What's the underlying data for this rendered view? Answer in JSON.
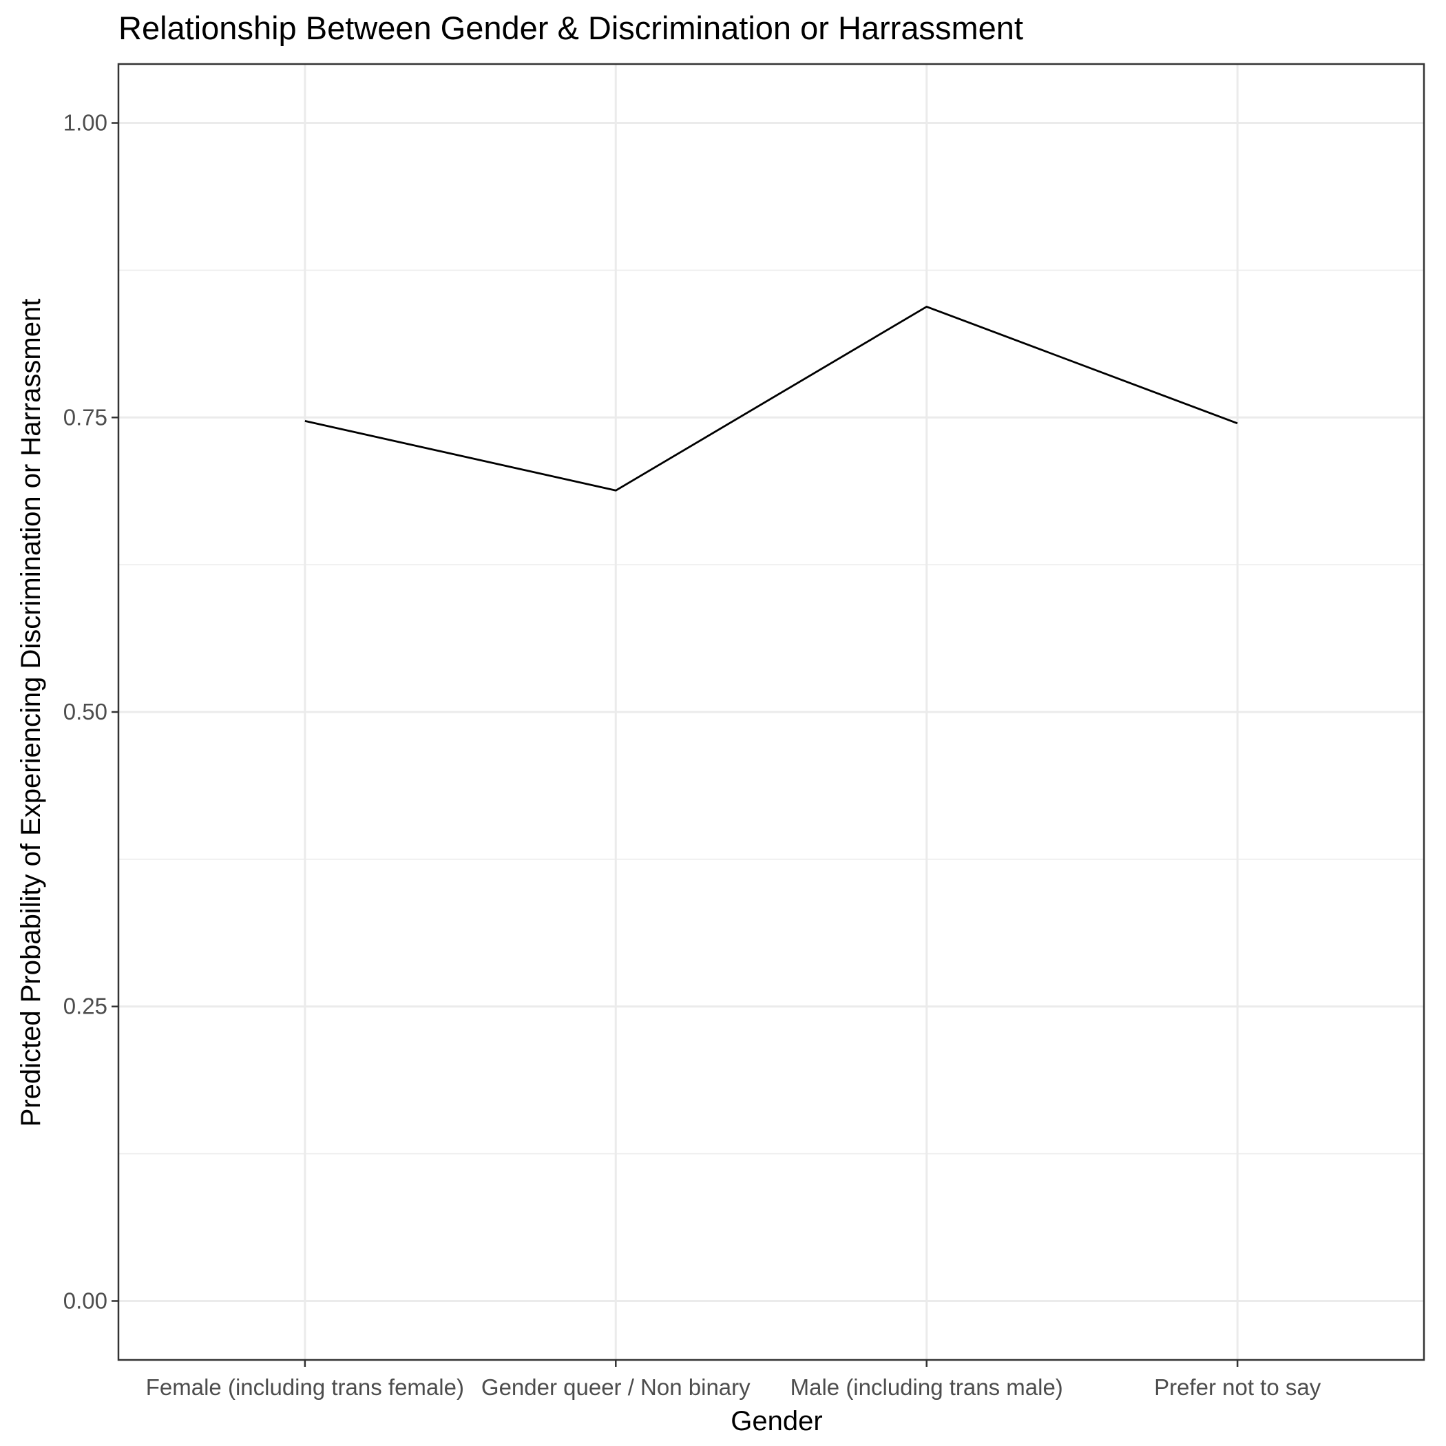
{
  "chart_data": {
    "type": "line",
    "title": "Relationship Between Gender & Discrimination or Harrassment",
    "xlabel": "Gender",
    "ylabel": "Predicted Probability of Experiencing Discrimination or Harrassment",
    "categories": [
      "Female (including trans female)",
      "Gender queer / Non binary",
      "Male (including trans male)",
      "Prefer not to say"
    ],
    "series": [
      {
        "values": [
          0.747,
          0.688,
          0.844,
          0.745
        ]
      }
    ],
    "ylim": [
      -0.05,
      1.05
    ],
    "yticks": [
      0.0,
      0.25,
      0.5,
      0.75,
      1.0
    ],
    "ytick_labels": [
      "0.00",
      "0.25",
      "0.50",
      "0.75",
      "1.00"
    ],
    "grid": true,
    "legend": "none",
    "colors": {
      "line": "#000000",
      "grid": "#ebebeb",
      "panel_border": "#333333",
      "tick_text": "#4d4d4d"
    }
  }
}
